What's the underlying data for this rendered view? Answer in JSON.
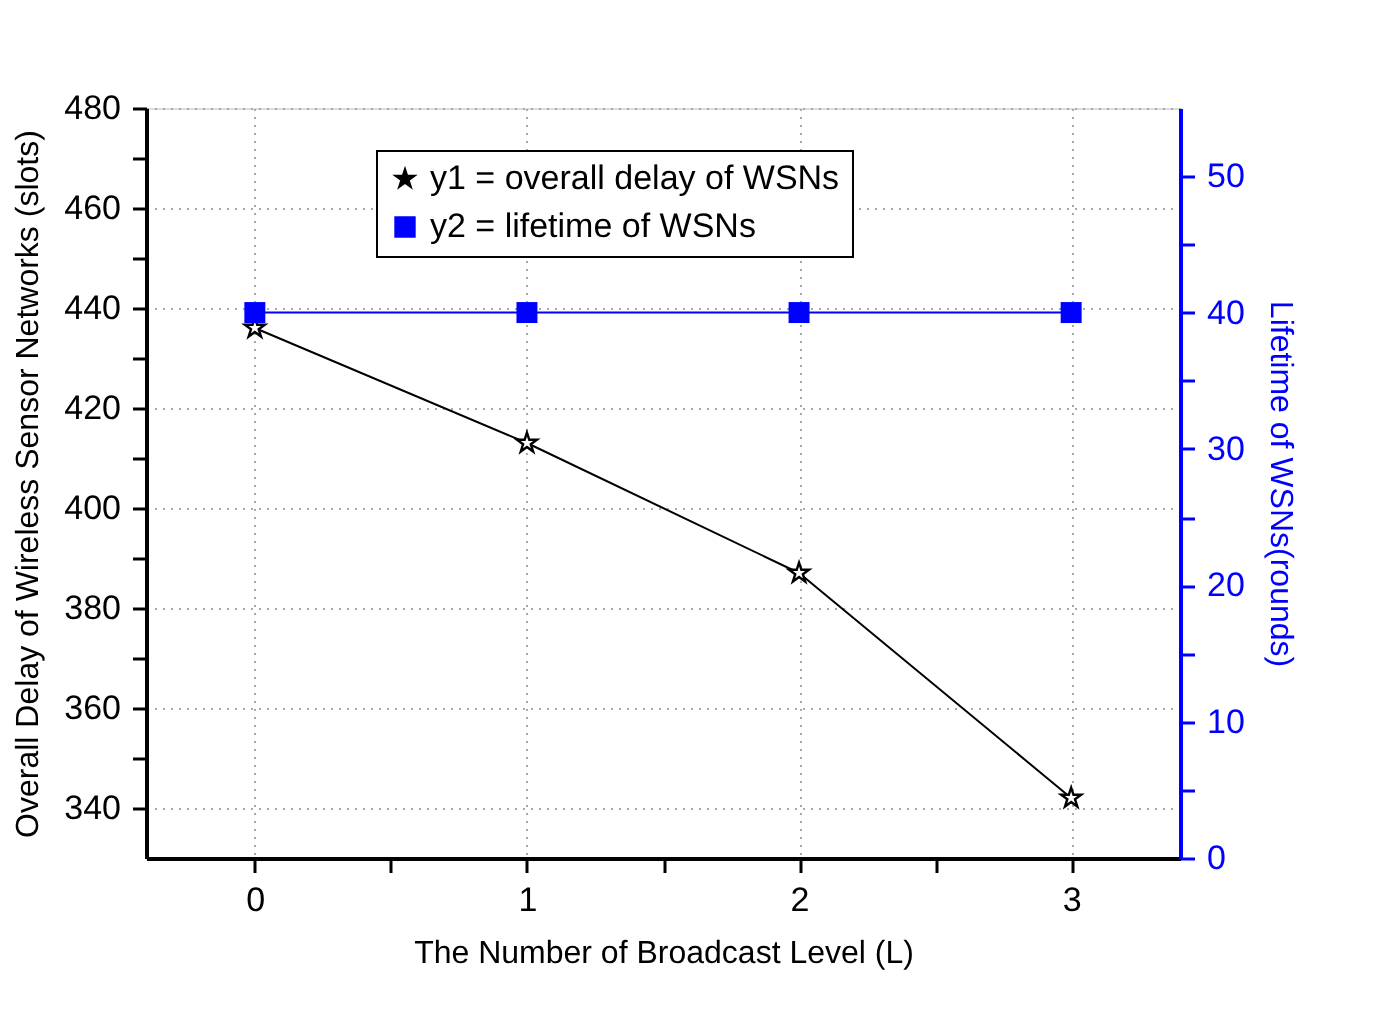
{
  "chart_data": {
    "type": "line",
    "xlabel": "The Number of Broadcast Level (L)",
    "ylabel": "Overall Delay of Wireless Sensor Networks (slots)",
    "y2label": "Lifetime of WSNs(rounds)",
    "x": [
      0,
      1,
      2,
      3
    ],
    "series": [
      {
        "name": "y1 = overall delay of WSNs",
        "color": "#000000",
        "marker": "star",
        "values": [
          436,
          413,
          387,
          342
        ]
      },
      {
        "name": "y2 = lifetime of WSNs",
        "color": "#0000ff",
        "marker": "square",
        "axis": "y2",
        "values": [
          40,
          40,
          40,
          40
        ]
      }
    ],
    "xlim": [
      -0.4,
      3.4
    ],
    "xticks": [
      0,
      {
        "value": 0.5,
        "label": null
      },
      1,
      {
        "value": 1.5,
        "label": null
      },
      2,
      {
        "value": 2.5,
        "label": null
      },
      3
    ],
    "ylim": [
      330,
      480
    ],
    "yticks": [
      340,
      {
        "value": 350,
        "label": null
      },
      360,
      {
        "value": 370,
        "label": null
      },
      380,
      {
        "value": 390,
        "label": null
      },
      400,
      {
        "value": 410,
        "label": null
      },
      420,
      {
        "value": 430,
        "label": null
      },
      440,
      {
        "value": 450,
        "label": null
      },
      460,
      {
        "value": 470,
        "label": null
      },
      480
    ],
    "y2lim": [
      0,
      55
    ],
    "y2ticks": [
      0,
      {
        "value": 5,
        "label": null
      },
      10,
      {
        "value": 15,
        "label": null
      },
      20,
      {
        "value": 25,
        "label": null
      },
      30,
      {
        "value": 35,
        "label": null
      },
      40,
      {
        "value": 45,
        "label": null
      },
      50
    ],
    "grid": true,
    "legend": "top",
    "line_style": "solid"
  }
}
